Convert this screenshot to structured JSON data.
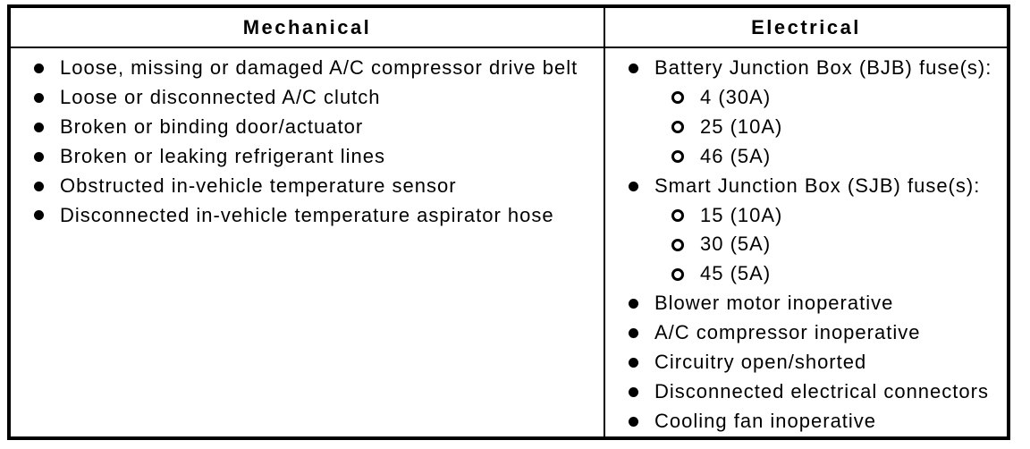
{
  "colors": {
    "background": "#ffffff",
    "text": "#000000",
    "border": "#000000"
  },
  "table": {
    "mechanical": {
      "header": "Mechanical",
      "items": [
        "Loose, missing or damaged A/C compressor drive belt",
        "Loose or disconnected A/C clutch",
        "Broken or binding door/actuator",
        "Broken or leaking refrigerant lines",
        "Obstructed in-vehicle temperature sensor",
        "Disconnected in-vehicle temperature aspirator hose"
      ]
    },
    "electrical": {
      "header": "Electrical",
      "items": [
        {
          "level": 1,
          "text": "Battery Junction Box (BJB) fuse(s):"
        },
        {
          "level": 2,
          "text": "4 (30A)"
        },
        {
          "level": 2,
          "text": "25 (10A)"
        },
        {
          "level": 2,
          "text": "46 (5A)"
        },
        {
          "level": 1,
          "text": "Smart Junction Box (SJB) fuse(s):"
        },
        {
          "level": 2,
          "text": "15 (10A)"
        },
        {
          "level": 2,
          "text": "30 (5A)"
        },
        {
          "level": 2,
          "text": "45 (5A)"
        },
        {
          "level": 1,
          "text": "Blower motor inoperative"
        },
        {
          "level": 1,
          "text": "A/C compressor inoperative"
        },
        {
          "level": 1,
          "text": "Circuitry open/shorted"
        },
        {
          "level": 1,
          "text": "Disconnected electrical connectors"
        },
        {
          "level": 1,
          "text": "Cooling fan inoperative"
        }
      ]
    }
  }
}
